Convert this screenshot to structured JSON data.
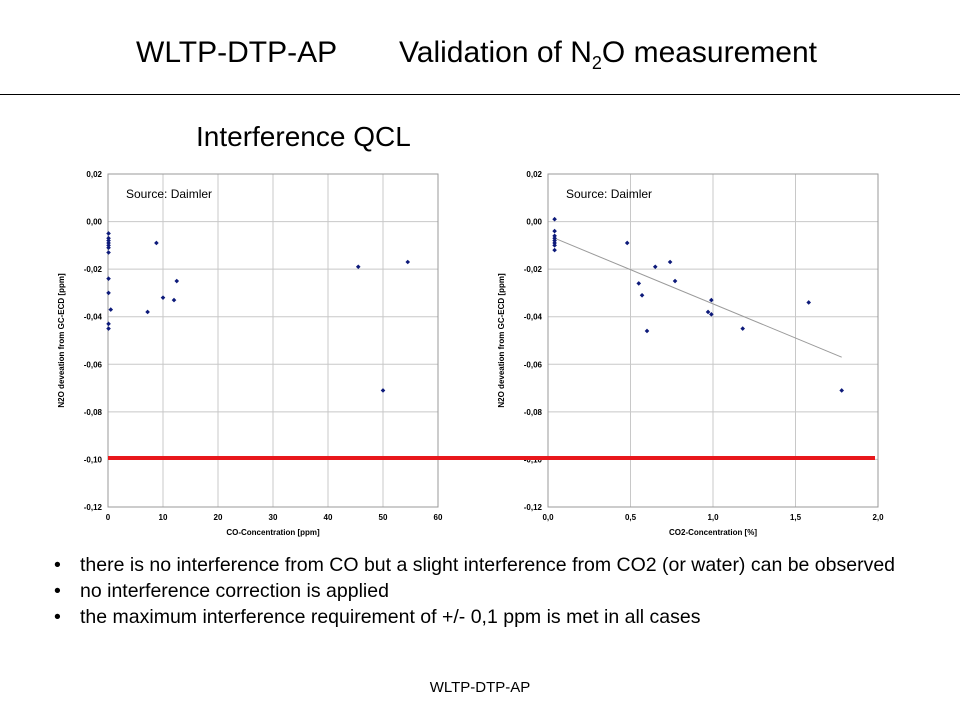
{
  "title": {
    "left": "WLTP-DTP-AP",
    "right_main": "Validation of N",
    "right_sub": "2",
    "right_end": "O measurement"
  },
  "subtitle": "Interference QCL",
  "bullets": [
    "there is no interference from CO but a slight interference from CO2 (or water) can be observed",
    "no interference correction is applied",
    "the maximum interference requirement of +/- 0,1 ppm is met in all cases"
  ],
  "footer": "WLTP-DTP-AP",
  "colors": {
    "marker": "#0d1a7a",
    "limit_line": "#e8181c",
    "trend": "#9a9a9a"
  },
  "chart_data": [
    {
      "type": "scatter",
      "source_label": "Source: Daimler",
      "xlabel": "CO-Concentration [ppm]",
      "ylabel": "N2O deveation from GC-ECD [ppm]",
      "xlim": [
        0,
        60
      ],
      "ylim": [
        -0.12,
        0.02
      ],
      "xticks": [
        "0",
        "10",
        "20",
        "30",
        "40",
        "50",
        "60"
      ],
      "yticks": [
        "0,02",
        "0,00",
        "-0,02",
        "-0,04",
        "-0,06",
        "-0,08",
        "-0,10",
        "-0,12"
      ],
      "grid": true,
      "points": [
        [
          0.1,
          -0.005
        ],
        [
          0.1,
          -0.007
        ],
        [
          0.1,
          -0.008
        ],
        [
          0.1,
          -0.009
        ],
        [
          0.1,
          -0.01
        ],
        [
          0.1,
          -0.011
        ],
        [
          0.1,
          -0.013
        ],
        [
          0.1,
          -0.024
        ],
        [
          0.1,
          -0.03
        ],
        [
          0.1,
          -0.043
        ],
        [
          0.1,
          -0.045
        ],
        [
          0.5,
          -0.037
        ],
        [
          7.2,
          -0.038
        ],
        [
          8.8,
          -0.009
        ],
        [
          10,
          -0.032
        ],
        [
          12,
          -0.033
        ],
        [
          12.5,
          -0.025
        ],
        [
          45.5,
          -0.019
        ],
        [
          50,
          -0.071
        ],
        [
          54.5,
          -0.017
        ]
      ]
    },
    {
      "type": "scatter",
      "source_label": "Source: Daimler",
      "xlabel": "CO2-Concentration [%]",
      "ylabel": "N2O deveation from GC-ECD [ppm]",
      "xlim": [
        0,
        2.0
      ],
      "ylim": [
        -0.12,
        0.02
      ],
      "xticks": [
        "0,0",
        "0,5",
        "1,0",
        "1,5",
        "2,0"
      ],
      "yticks": [
        "0,02",
        "0,00",
        "-0,02",
        "-0,04",
        "-0,06",
        "-0,08",
        "-0,10",
        "-0,12"
      ],
      "grid": true,
      "points": [
        [
          0.04,
          0.001
        ],
        [
          0.04,
          -0.004
        ],
        [
          0.04,
          -0.006
        ],
        [
          0.04,
          -0.007
        ],
        [
          0.04,
          -0.008
        ],
        [
          0.04,
          -0.009
        ],
        [
          0.04,
          -0.01
        ],
        [
          0.04,
          -0.012
        ],
        [
          0.48,
          -0.009
        ],
        [
          0.55,
          -0.026
        ],
        [
          0.57,
          -0.031
        ],
        [
          0.6,
          -0.046
        ],
        [
          0.65,
          -0.019
        ],
        [
          0.74,
          -0.017
        ],
        [
          0.77,
          -0.025
        ],
        [
          0.97,
          -0.038
        ],
        [
          0.99,
          -0.039
        ],
        [
          0.99,
          -0.033
        ],
        [
          1.18,
          -0.045
        ],
        [
          1.58,
          -0.034
        ],
        [
          1.78,
          -0.071
        ]
      ],
      "trendline": [
        [
          0.04,
          -0.007
        ],
        [
          1.78,
          -0.057
        ]
      ]
    }
  ]
}
